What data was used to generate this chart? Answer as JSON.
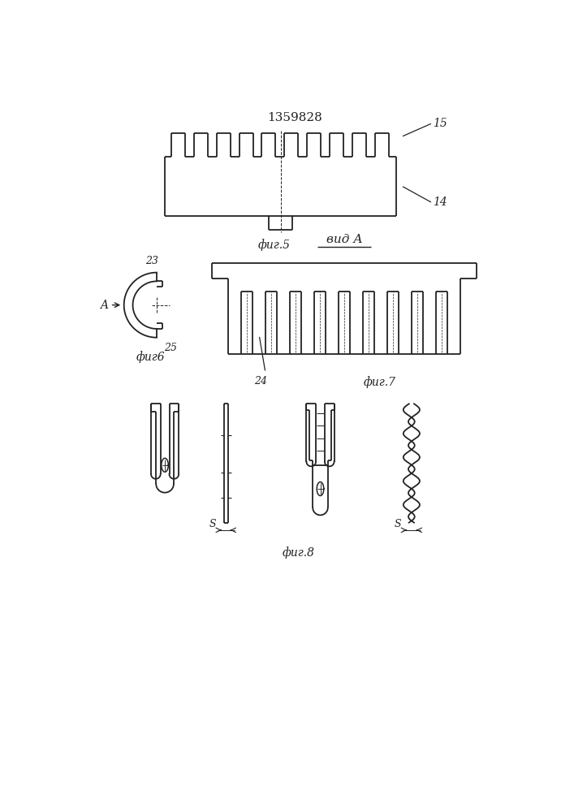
{
  "title": "1359828",
  "bg_color": "#ffffff",
  "line_color": "#222222",
  "lw": 1.3,
  "fig5_label": "фиг.5",
  "fig6_label": "фиг6",
  "fig7_label": "фиг.7",
  "fig8_label": "фиг.8",
  "vidA_label": "вид А",
  "label_14": "14",
  "label_15": "15",
  "label_23": "23",
  "label_24": "24",
  "label_25": "25",
  "label_S": "S",
  "label_A": "A"
}
